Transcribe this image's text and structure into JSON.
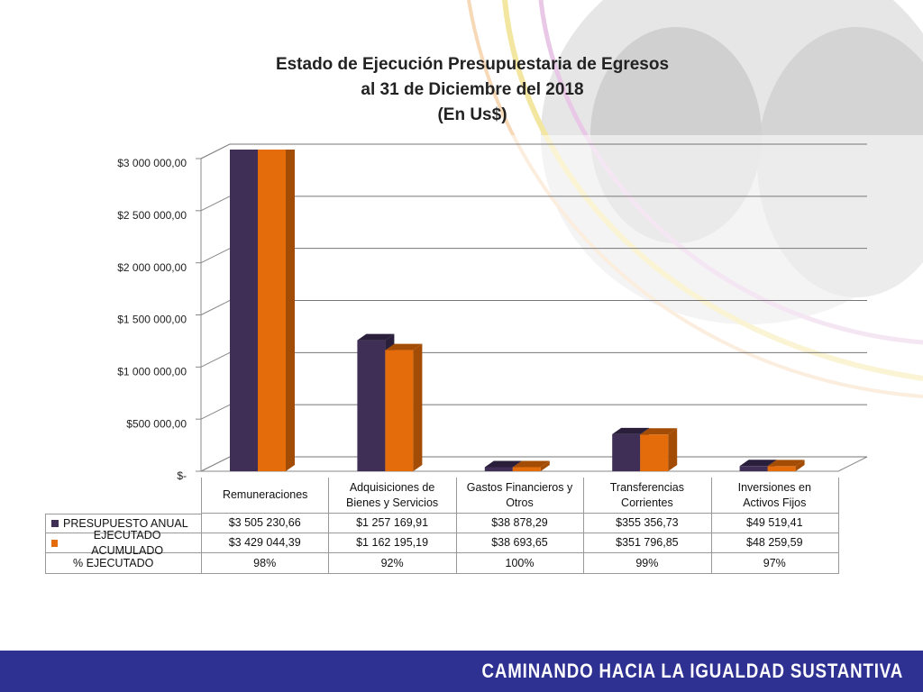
{
  "chart_data": {
    "type": "bar3d",
    "title": [
      "Estado de Ejecución Presupuestaria de Egresos",
      "al 31 de Diciembre del 2018",
      "(En Us$)"
    ],
    "categories": [
      "Remuneraciones",
      "Adquisiciones de Bienes y Servicios",
      "Gastos Financieros y Otros",
      "Transferencias Corrientes",
      "Inversiones en Activos Fijos"
    ],
    "series": [
      {
        "name": "PRESUPUESTO ANUAL",
        "color": "#3f2f56",
        "side_color": "#2a1f3b",
        "values": [
          3505230.66,
          1257169.91,
          38878.29,
          355356.73,
          49519.41
        ],
        "value_labels": [
          "$3 505 230,66",
          "$1 257 169,91",
          "$38 878,29",
          "$355 356,73",
          "$49 519,41"
        ]
      },
      {
        "name": "EJECUTADO ACUMULADO",
        "color": "#e46c0a",
        "side_color": "#a34c05",
        "values": [
          3429044.39,
          1162195.19,
          38693.65,
          351796.85,
          48259.59
        ],
        "value_labels": [
          "$3 429 044,39",
          "$1 162 195,19",
          "$38 693,65",
          "$351 796,85",
          "$48 259,59"
        ]
      }
    ],
    "percent_row": {
      "name": "% EJECUTADO",
      "values": [
        98,
        92,
        100,
        99,
        97
      ],
      "value_labels": [
        "98%",
        "92%",
        "100%",
        "99%",
        "97%"
      ]
    },
    "ylim": [
      0,
      3000000
    ],
    "yticks": [
      {
        "value": 0,
        "label": "$-"
      },
      {
        "value": 500000,
        "label": "$500 000,00"
      },
      {
        "value": 1000000,
        "label": "$1 000 000,00"
      },
      {
        "value": 1500000,
        "label": "$1 500 000,00"
      },
      {
        "value": 2000000,
        "label": "$2 000 000,00"
      },
      {
        "value": 2500000,
        "label": "$2 500 000,00"
      },
      {
        "value": 3000000,
        "label": "$3 000 000,00"
      }
    ],
    "grid": true
  },
  "footer": "CAMINANDO HACIA LA IGUALDAD SUSTANTIVA"
}
